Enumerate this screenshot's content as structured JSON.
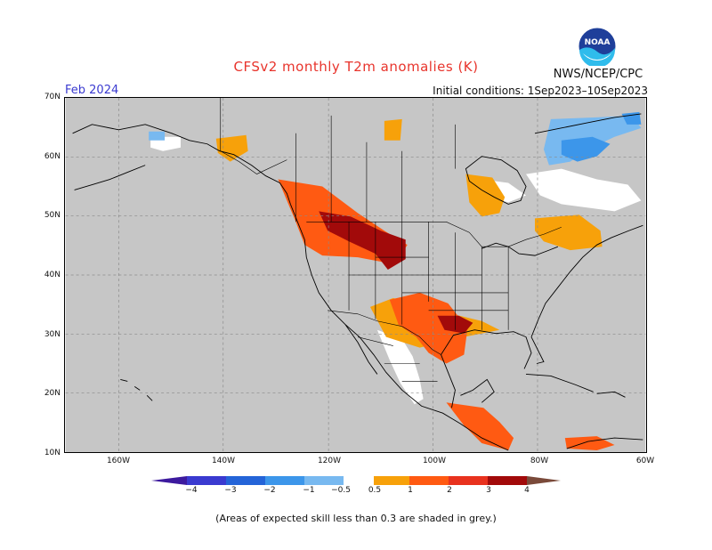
{
  "header": {
    "title": "CFSv2 monthly T2m anomalies (K)",
    "month": "Feb 2024",
    "initial_conditions": "Initial conditions: 1Sep2023–10Sep2023",
    "agency": "NWS/NCEP/CPC",
    "logo_text": "NOAA"
  },
  "axes": {
    "lat_labels": [
      "70N",
      "60N",
      "50N",
      "40N",
      "30N",
      "20N",
      "10N"
    ],
    "lon_labels": [
      "160W",
      "140W",
      "120W",
      "100W",
      "80W",
      "60W"
    ]
  },
  "colorbar": {
    "labels": [
      "−4",
      "−3",
      "−2",
      "−1",
      "−0.5",
      "0.5",
      "1",
      "2",
      "3",
      "4"
    ],
    "colors": [
      "#3d1a9e",
      "#3a3ad0",
      "#2464d8",
      "#3c96ea",
      "#78b9f0",
      "#ffffff",
      "#f7a10a",
      "#ff5a12",
      "#e8321e",
      "#a20a0a",
      "#c9a199",
      "#7a4a3a"
    ]
  },
  "colors": {
    "land_bg": "#c6c6c6",
    "border": "#000000",
    "grid": "#8a8a8a",
    "title": "#e8342c"
  },
  "footnote": "(Areas of expected skill less than 0.3 are shaded in grey.)"
}
